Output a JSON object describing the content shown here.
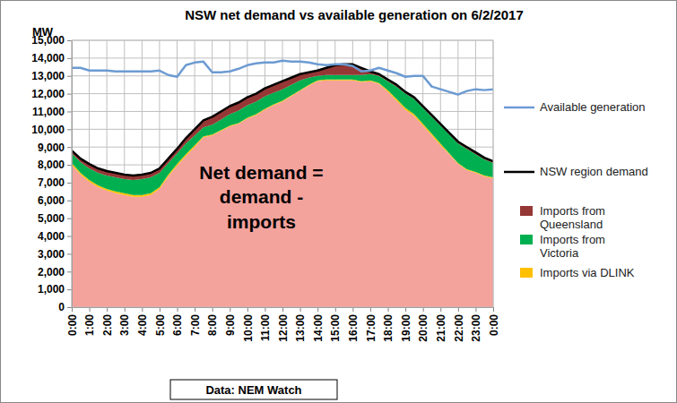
{
  "chart_data": {
    "type": "area",
    "title": "NSW net demand vs available generation on 6/2/2017",
    "y_label": "MW",
    "source": "Data: NEM Watch",
    "stacked": true,
    "grid": true,
    "legend": "right",
    "categories": [
      "0:00",
      null,
      "1:00",
      null,
      "2:00",
      null,
      "3:00",
      null,
      "4:00",
      null,
      "5:00",
      null,
      "6:00",
      null,
      "7:00",
      null,
      "8:00",
      null,
      "9:00",
      null,
      "10:00",
      null,
      "11:00",
      null,
      "12:00",
      null,
      "13:00",
      null,
      "14:00",
      null,
      "15:00",
      null,
      "16:00",
      null,
      "17:00",
      null,
      "18:00",
      null,
      "19:00",
      null,
      "20:00",
      null,
      "21:00",
      null,
      "22:00",
      null,
      "23:00",
      null,
      "0:00"
    ],
    "ylim": [
      0,
      15000
    ],
    "yticks": [
      0,
      {
        "value": 1000,
        "label": "1,000"
      },
      {
        "value": 2000,
        "label": "2,000"
      },
      {
        "value": 3000,
        "label": "3,000"
      },
      {
        "value": 4000,
        "label": "4,000"
      },
      {
        "value": 5000,
        "label": "5,000"
      },
      {
        "value": 6000,
        "label": "6,000"
      },
      {
        "value": 7000,
        "label": "7,000"
      },
      {
        "value": 8000,
        "label": "8,000"
      },
      {
        "value": 9000,
        "label": "9,000"
      },
      {
        "value": 10000,
        "label": "10,000"
      },
      {
        "value": 11000,
        "label": "11,000"
      },
      {
        "value": 12000,
        "label": "12,000"
      },
      {
        "value": 13000,
        "label": "13,000"
      },
      {
        "value": 14000,
        "label": "14,000"
      },
      {
        "value": 15000,
        "label": "15,000"
      }
    ],
    "series": [
      {
        "name": "Net demand = demand - imports",
        "type": "area",
        "color": "#f4a29c",
        "values": [
          8000,
          7450,
          7050,
          6750,
          6550,
          6400,
          6300,
          6200,
          6200,
          6300,
          6650,
          7350,
          7950,
          8500,
          9000,
          9550,
          9650,
          9900,
          10150,
          10300,
          10600,
          10800,
          11100,
          11350,
          11550,
          11850,
          12150,
          12450,
          12700,
          12750,
          12750,
          12750,
          12750,
          12650,
          12700,
          12550,
          12100,
          11600,
          11100,
          10750,
          10200,
          9650,
          9100,
          8600,
          8050,
          7700,
          7550,
          7350,
          7250
        ]
      },
      {
        "name": "Imports via DLINK",
        "type": "area",
        "color": "#ffc000",
        "values": [
          100,
          100,
          100,
          100,
          100,
          100,
          100,
          100,
          100,
          100,
          100,
          100,
          100,
          100,
          100,
          50,
          50,
          50,
          50,
          50,
          50,
          50,
          50,
          50,
          50,
          50,
          50,
          50,
          50,
          50,
          50,
          50,
          50,
          50,
          50,
          50,
          100,
          100,
          100,
          100,
          100,
          100,
          100,
          50,
          50,
          50,
          50,
          50,
          50
        ]
      },
      {
        "name": "Imports from Victoria",
        "type": "area",
        "color": "#00b050",
        "values": [
          550,
          600,
          650,
          700,
          750,
          800,
          800,
          850,
          900,
          900,
          800,
          650,
          600,
          600,
          550,
          500,
          550,
          600,
          650,
          700,
          700,
          700,
          700,
          650,
          650,
          600,
          550,
          400,
          250,
          250,
          250,
          250,
          250,
          350,
          350,
          400,
          500,
          700,
          800,
          850,
          900,
          950,
          1000,
          1050,
          1100,
          1150,
          1000,
          900,
          800
        ]
      },
      {
        "name": "Imports from Queensland",
        "type": "area",
        "color": "#953735",
        "values": [
          150,
          200,
          250,
          250,
          250,
          250,
          250,
          250,
          250,
          250,
          250,
          250,
          250,
          300,
          350,
          400,
          450,
          450,
          450,
          450,
          450,
          450,
          450,
          450,
          450,
          400,
          350,
          300,
          300,
          400,
          550,
          600,
          600,
          400,
          150,
          100,
          100,
          100,
          100,
          100,
          100,
          100,
          100,
          100,
          100,
          100,
          100,
          100,
          100
        ]
      },
      {
        "name": "NSW region demand",
        "type": "line",
        "color": "#000000",
        "values": [
          8800,
          8350,
          8050,
          7800,
          7650,
          7550,
          7450,
          7400,
          7450,
          7550,
          7800,
          8350,
          8900,
          9500,
          10000,
          10500,
          10700,
          11000,
          11300,
          11500,
          11800,
          12000,
          12300,
          12500,
          12700,
          12900,
          13100,
          13200,
          13300,
          13450,
          13600,
          13650,
          13650,
          13450,
          13250,
          13100,
          12800,
          12500,
          12100,
          11800,
          11300,
          10800,
          10300,
          9800,
          9300,
          9000,
          8700,
          8400,
          8200
        ]
      },
      {
        "name": "Available generation",
        "type": "line",
        "color": "#6c9bd2",
        "values": [
          13450,
          13450,
          13300,
          13300,
          13300,
          13250,
          13250,
          13250,
          13250,
          13250,
          13300,
          13050,
          12950,
          13600,
          13750,
          13800,
          13200,
          13200,
          13250,
          13400,
          13600,
          13700,
          13750,
          13750,
          13850,
          13800,
          13800,
          13750,
          13650,
          13600,
          13650,
          13650,
          13550,
          13250,
          13300,
          13450,
          13300,
          13150,
          12950,
          13000,
          13000,
          12400,
          12250,
          12100,
          11950,
          12150,
          12250,
          12200,
          12250
        ]
      }
    ]
  }
}
